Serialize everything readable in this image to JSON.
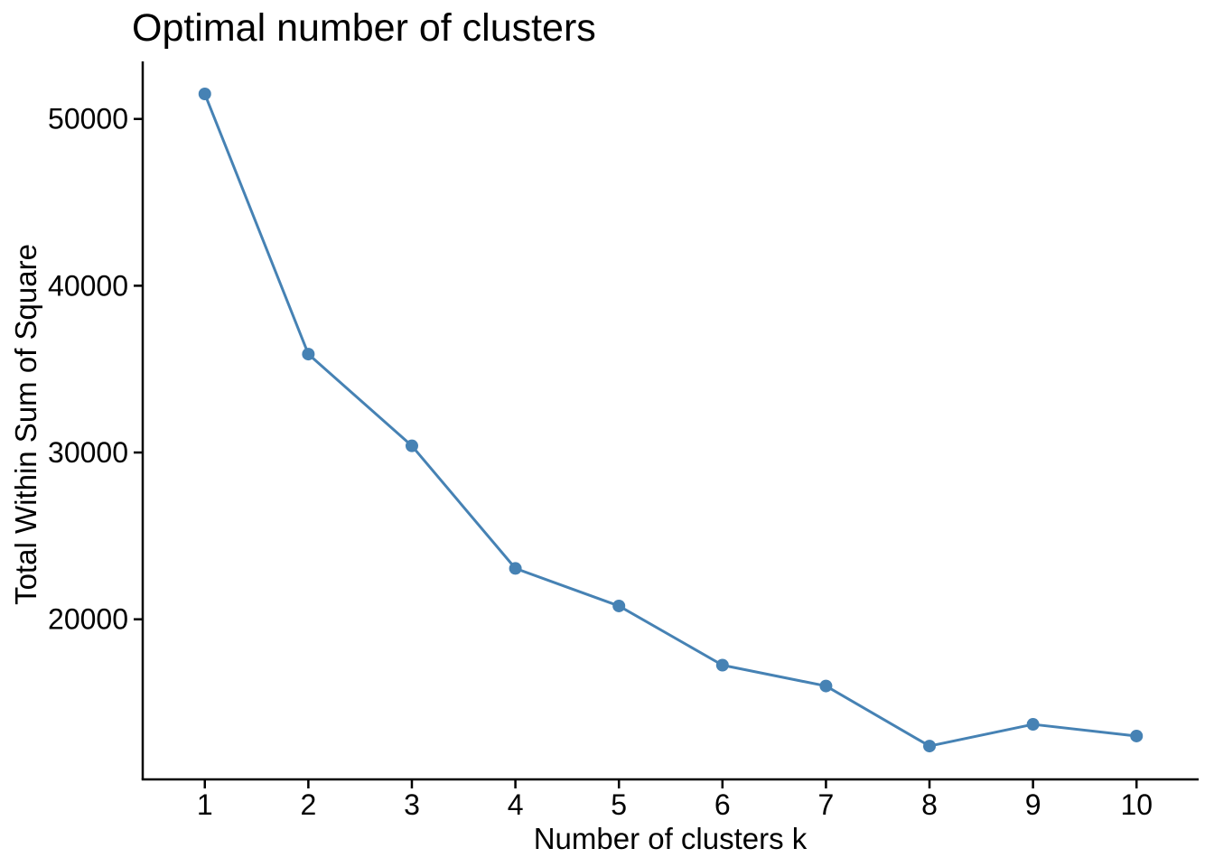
{
  "chart_data": {
    "type": "line",
    "title": "Optimal number of clusters",
    "xlabel": "Number of clusters k",
    "ylabel": "Total Within Sum of Square",
    "x": [
      1,
      2,
      3,
      4,
      5,
      6,
      7,
      8,
      9,
      10
    ],
    "values": [
      51500,
      35900,
      30400,
      23050,
      20800,
      17250,
      16000,
      12400,
      13700,
      13000
    ],
    "xticks": [
      1,
      2,
      3,
      4,
      5,
      6,
      7,
      8,
      9,
      10
    ],
    "yticks": [
      20000,
      30000,
      40000,
      50000
    ],
    "xlim": [
      0.4,
      10.6
    ],
    "ylim": [
      10400,
      53450
    ],
    "grid": false,
    "legend_position": "none",
    "line_color": "#4682B4",
    "marker_color": "#4682B4",
    "marker_shape": "circle",
    "axis_color": "#000000",
    "text_color": "#000000",
    "background_color": "#FFFFFF"
  }
}
